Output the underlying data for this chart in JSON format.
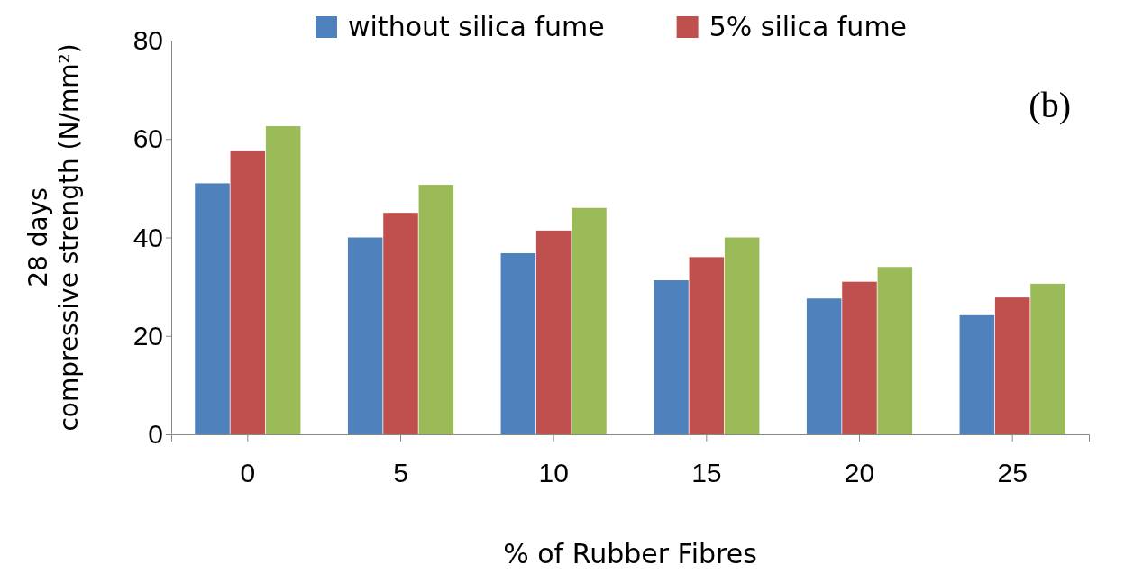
{
  "chart_data": {
    "type": "bar",
    "xlabel": "% of Rubber Fibres",
    "ylabel": "28 days compressive strength (N/mm²)",
    "categories": [
      "0",
      "5",
      "10",
      "15",
      "20",
      "25"
    ],
    "series": [
      {
        "name": "without silica fume",
        "color": "#4f81bd",
        "values": [
          51,
          40,
          36.8,
          31.3,
          27.6,
          24.2
        ]
      },
      {
        "name": "5% silica fume",
        "color": "#c0504d",
        "values": [
          57.5,
          45,
          41.4,
          36,
          31,
          27.8
        ]
      },
      {
        "color": "#9bbb59",
        "values": [
          62.6,
          50.7,
          46,
          40,
          34,
          30.6
        ]
      }
    ],
    "ylim": [
      0,
      80
    ],
    "yticks": [
      0,
      20,
      40,
      60,
      80
    ],
    "grid": false,
    "legend": "top",
    "annotations": [
      "(b)"
    ]
  }
}
